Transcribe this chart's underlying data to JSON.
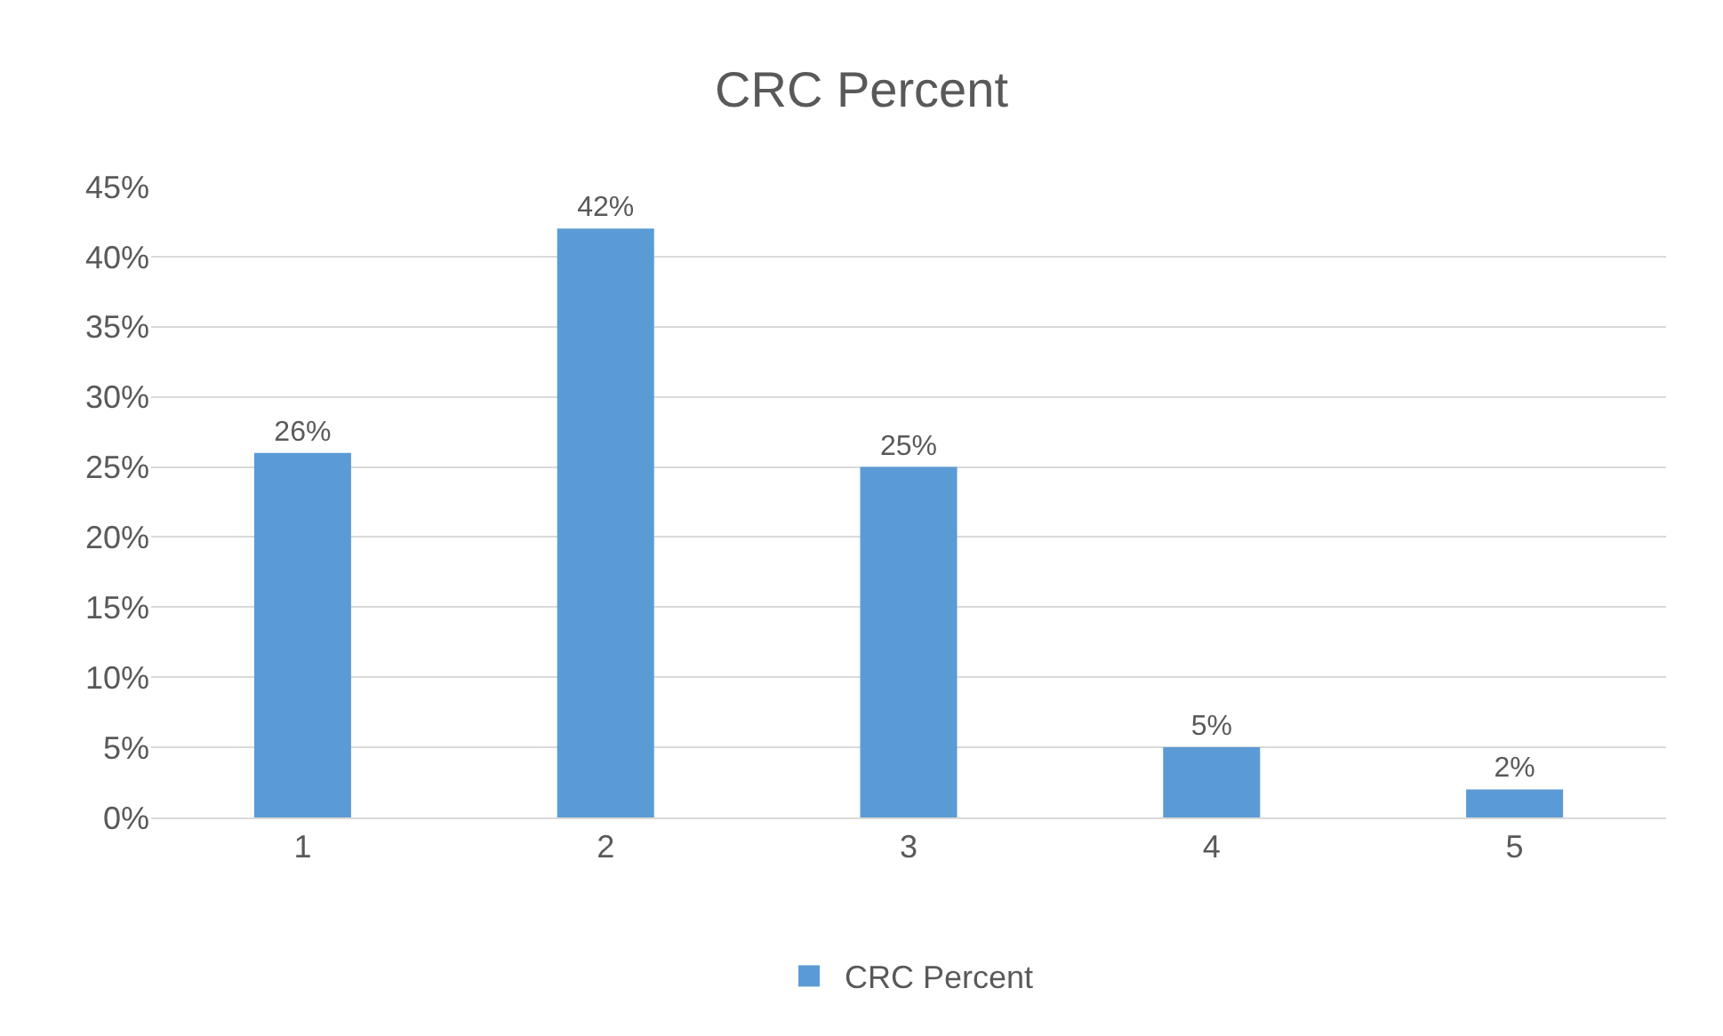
{
  "chart_data": {
    "type": "bar",
    "title": "CRC Percent",
    "categories": [
      "1",
      "2",
      "3",
      "4",
      "5"
    ],
    "series": [
      {
        "name": "CRC Percent",
        "color": "#5b9bd5",
        "values": [
          26,
          42,
          25,
          5,
          2
        ],
        "value_labels": [
          "26%",
          "42%",
          "25%",
          "5%",
          "2%"
        ]
      }
    ],
    "ylim": [
      0,
      45
    ],
    "yticks": [
      {
        "value": 0,
        "label": "0%"
      },
      {
        "value": 5,
        "label": "5%"
      },
      {
        "value": 10,
        "label": "10%"
      },
      {
        "value": 15,
        "label": "15%"
      },
      {
        "value": 20,
        "label": "20%"
      },
      {
        "value": 25,
        "label": "25%"
      },
      {
        "value": 30,
        "label": "30%"
      },
      {
        "value": 35,
        "label": "35%"
      },
      {
        "value": 40,
        "label": "40%"
      },
      {
        "value": 45,
        "label": "45%"
      }
    ],
    "grid": "y",
    "legend": "bottom"
  }
}
